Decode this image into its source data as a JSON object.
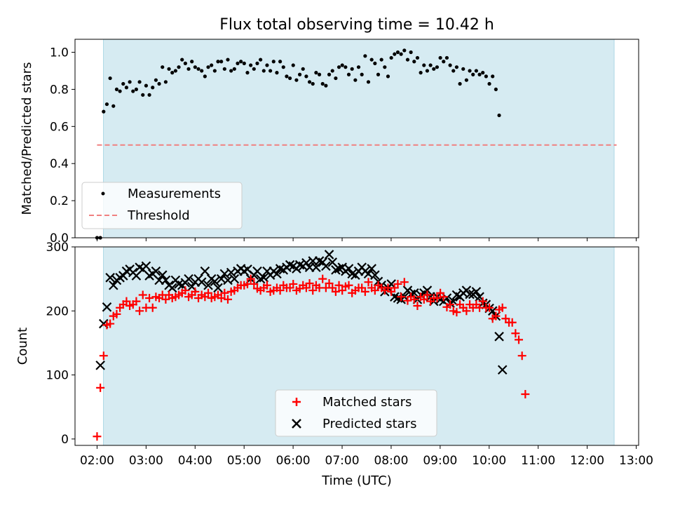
{
  "title": "Flux total observing time = 10.42 h",
  "colors": {
    "shade": "#add8e6",
    "measurement": "#000000",
    "threshold": "#f08080",
    "matched": "#ff0000",
    "predicted": "#000000"
  },
  "chart_data": [
    {
      "type": "scatter",
      "ylabel": "Matched/Predicted stars",
      "xlabel": "",
      "ylim": [
        0,
        1.07
      ],
      "yticks": [
        0,
        0.2,
        0.4,
        0.6,
        0.8,
        1.0
      ],
      "ytick_labels": [
        "0.0",
        "0.2",
        "0.4",
        "0.6",
        "0.8",
        "1.0"
      ],
      "legend_position": "lower-left",
      "observing_window_hours": [
        2.13,
        12.55
      ],
      "threshold": {
        "label": "Threshold",
        "value": 0.5
      },
      "series": [
        {
          "name": "Measurements",
          "start_hour": 2.0,
          "step_hours": 0.0667,
          "values": [
            0.0,
            0.0,
            0.68,
            0.72,
            0.86,
            0.71,
            0.8,
            0.79,
            0.83,
            0.81,
            0.84,
            0.79,
            0.8,
            0.84,
            0.77,
            0.82,
            0.77,
            0.81,
            0.85,
            0.83,
            0.92,
            0.84,
            0.91,
            0.89,
            0.9,
            0.92,
            0.96,
            0.94,
            0.91,
            0.95,
            0.92,
            0.91,
            0.9,
            0.87,
            0.92,
            0.93,
            0.9,
            0.95,
            0.95,
            0.91,
            0.96,
            0.9,
            0.91,
            0.94,
            0.95,
            0.94,
            0.89,
            0.93,
            0.91,
            0.94,
            0.96,
            0.9,
            0.93,
            0.9,
            0.95,
            0.89,
            0.95,
            0.92,
            0.87,
            0.86,
            0.93,
            0.85,
            0.88,
            0.91,
            0.87,
            0.84,
            0.83,
            0.89,
            0.88,
            0.83,
            0.82,
            0.88,
            0.9,
            0.86,
            0.92,
            0.93,
            0.92,
            0.88,
            0.91,
            0.85,
            0.92,
            0.88,
            0.98,
            0.84,
            0.96,
            0.94,
            0.88,
            0.96,
            0.92,
            0.87,
            0.97,
            0.99,
            1.0,
            0.99,
            1.01,
            0.96,
            1.0,
            0.95,
            0.97,
            0.89,
            0.93,
            0.9,
            0.93,
            0.91,
            0.92,
            0.97,
            0.95,
            0.97,
            0.93,
            0.9,
            0.92,
            0.83,
            0.91,
            0.85,
            0.9,
            0.88,
            0.9,
            0.88,
            0.89,
            0.87,
            0.83,
            0.87,
            0.8,
            0.66
          ]
        }
      ]
    },
    {
      "type": "scatter",
      "ylabel": "Count",
      "xlabel": "Time (UTC)",
      "xlim": [
        1.55,
        13.05
      ],
      "ylim": [
        -10,
        300
      ],
      "yticks": [
        0,
        100,
        200,
        300
      ],
      "ytick_labels": [
        "0",
        "100",
        "200",
        "300"
      ],
      "xticks": [
        2,
        3,
        4,
        5,
        6,
        7,
        8,
        9,
        10,
        11,
        12,
        13
      ],
      "xtick_labels": [
        "02:00",
        "03:00",
        "04:00",
        "05:00",
        "06:00",
        "07:00",
        "08:00",
        "09:00",
        "10:00",
        "11:00",
        "12:00",
        "13:00"
      ],
      "legend_position": "bottom-center",
      "observing_window_hours": [
        2.13,
        12.55
      ],
      "series": [
        {
          "name": "Matched stars",
          "marker": "plus",
          "start_hour": 2.0,
          "step_hours": 0.0667,
          "values": [
            4,
            80,
            130,
            178,
            180,
            192,
            195,
            205,
            210,
            215,
            208,
            210,
            215,
            200,
            225,
            205,
            220,
            205,
            222,
            220,
            225,
            218,
            225,
            220,
            222,
            225,
            228,
            232,
            222,
            225,
            230,
            220,
            225,
            222,
            228,
            220,
            222,
            225,
            220,
            228,
            218,
            230,
            232,
            236,
            240,
            240,
            242,
            250,
            242,
            235,
            232,
            236,
            240,
            230,
            232,
            236,
            232,
            240,
            236,
            236,
            242,
            232,
            235,
            240,
            236,
            243,
            232,
            240,
            236,
            250,
            236,
            243,
            236,
            230,
            240,
            232,
            238,
            240,
            228,
            232,
            236,
            236,
            230,
            245,
            236,
            232,
            240,
            236,
            232,
            236,
            230,
            236,
            242,
            222,
            245,
            216,
            222,
            218,
            208,
            222,
            218,
            225,
            215,
            220,
            220,
            228,
            222,
            206,
            210,
            200,
            198,
            210,
            205,
            200,
            210,
            205,
            210,
            205,
            215,
            205,
            205,
            188,
            192,
            202,
            205,
            188,
            182,
            182,
            165,
            155,
            130,
            70
          ]
        },
        {
          "name": "Predicted stars",
          "marker": "x",
          "start_hour": 2.067,
          "step_hours": 0.0667,
          "values": [
            115,
            180,
            206,
            252,
            240,
            248,
            252,
            255,
            262,
            265,
            260,
            255,
            268,
            265,
            270,
            255,
            258,
            262,
            248,
            256,
            248,
            240,
            236,
            248,
            242,
            240,
            244,
            250,
            238,
            245,
            250,
            245,
            262,
            240,
            250,
            246,
            236,
            250,
            258,
            248,
            260,
            250,
            262,
            266,
            262,
            265,
            250,
            256,
            262,
            250,
            252,
            262,
            256,
            262,
            258,
            266,
            264,
            268,
            272,
            270,
            266,
            272,
            270,
            275,
            268,
            278,
            268,
            278,
            276,
            270,
            288,
            276,
            264,
            266,
            268,
            262,
            266,
            258,
            256,
            262,
            268,
            262,
            258,
            266,
            256,
            246,
            240,
            230,
            236,
            242,
            222,
            220,
            218,
            222,
            232,
            226,
            228,
            218,
            225,
            228,
            232,
            222,
            215,
            222,
            218,
            215,
            220,
            212,
            215,
            225,
            222,
            228,
            232,
            226,
            226,
            230,
            222,
            212,
            210,
            204,
            200,
            192,
            160,
            108
          ]
        }
      ]
    }
  ]
}
